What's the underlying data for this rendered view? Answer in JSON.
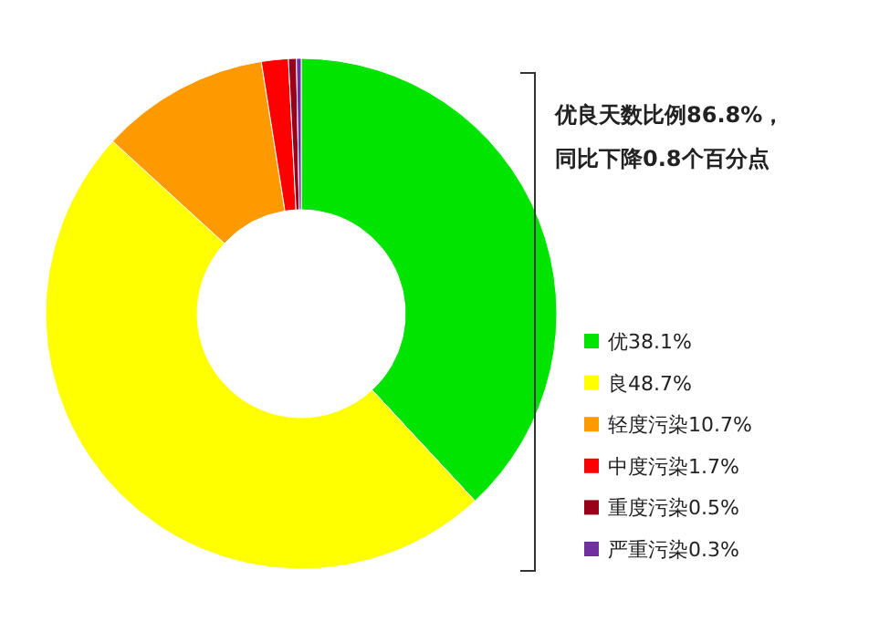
{
  "chart_data": {
    "type": "donut",
    "categories": [
      "优38.1%",
      "良48.7%",
      "轻度污染10.7%",
      "中度污染1.7%",
      "重度污染0.5%",
      "严重污染0.3%"
    ],
    "values": [
      38.1,
      48.7,
      10.7,
      1.7,
      0.5,
      0.3
    ],
    "colors": [
      "#00e400",
      "#ffff00",
      "#ff9900",
      "#ff0000",
      "#99001a",
      "#7030a0"
    ],
    "legend": "right",
    "annotations": [
      "优良天数比例86.8%，",
      "同比下降0.8个百分点"
    ]
  }
}
